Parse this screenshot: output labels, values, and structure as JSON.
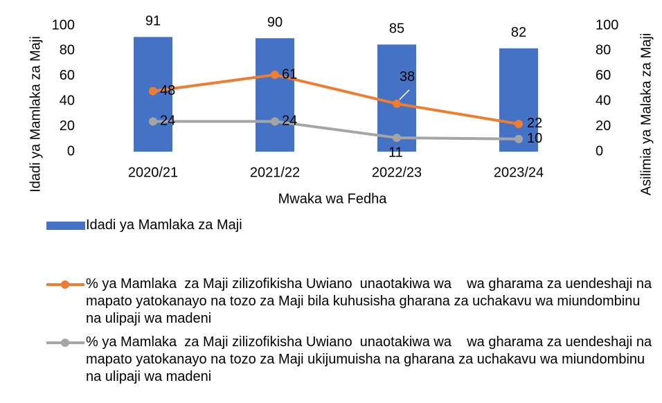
{
  "chart_data": {
    "type": "bar",
    "categories": [
      "2020/21",
      "2021/22",
      "2022/23",
      "2023/24"
    ],
    "xlabel": "Mwaka wa Fedha",
    "ylabel": "Idadi ya Mamlaka za Maji",
    "y2label": "Asilimia ya Malaka za Maji",
    "ylim": [
      0,
      100
    ],
    "yticks": [
      0,
      20,
      40,
      60,
      80,
      100
    ],
    "y2lim": [
      0,
      100
    ],
    "y2ticks": [
      0,
      20,
      40,
      60,
      80,
      100
    ],
    "series": [
      {
        "name": "Idadi ya Mamlaka za Maji",
        "type": "bar",
        "color": "#4472c4",
        "values": [
          91,
          90,
          85,
          82
        ]
      },
      {
        "name": "% ya Mamlaka  za Maji zilizofikisha Uwiano  unaotakiwa wa    wa gharama za uendeshaji na mapato yatokanayo na tozo za Maji bila kuhusisha gharana za uchakavu wa miundombinu na ulipaji wa madeni",
        "type": "line",
        "axis": "y2",
        "color": "#ed7d31",
        "values": [
          48,
          61,
          38,
          22
        ]
      },
      {
        "name": "% ya Mamlaka  za Maji zilizofikisha Uwiano  unaotakiwa wa    wa gharama za uendeshaji na mapato yatokanayo na tozo za Maji ukijumuisha na gharana za uchakavu wa miundombinu na ulipaji wa madeni",
        "type": "line",
        "axis": "y2",
        "color": "#a5a5a5",
        "values": [
          24,
          24,
          11,
          10
        ]
      }
    ]
  }
}
